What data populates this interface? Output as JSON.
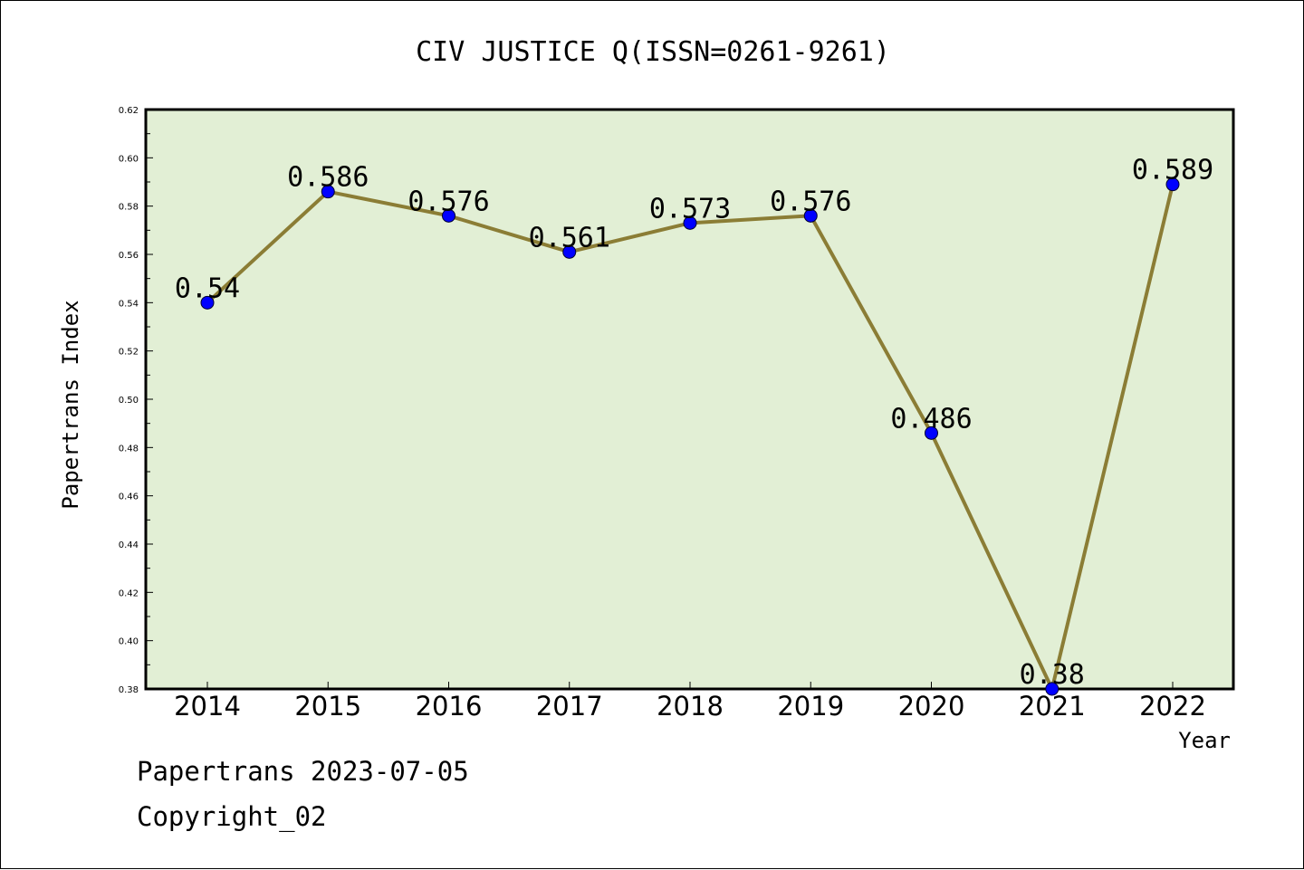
{
  "footer": {
    "line1": "Papertrans 2023-07-05",
    "line2": "Copyright_02"
  },
  "chart_data": {
    "type": "line",
    "title": "CIV JUSTICE Q(ISSN=0261-9261)",
    "xlabel": "Year",
    "ylabel": "Papertrans Index",
    "categories": [
      "2014",
      "2015",
      "2016",
      "2017",
      "2018",
      "2019",
      "2020",
      "2021",
      "2022"
    ],
    "values": [
      0.54,
      0.586,
      0.576,
      0.561,
      0.573,
      0.576,
      0.486,
      0.38,
      0.589
    ],
    "data_labels": [
      "0.54",
      "0.586",
      "0.576",
      "0.561",
      "0.573",
      "0.576",
      "0.486",
      "0.38",
      "0.589"
    ],
    "ylim": [
      0.38,
      0.62
    ],
    "yticks": [
      "0.38",
      "0.40",
      "0.42",
      "0.44",
      "0.46",
      "0.48",
      "0.50",
      "0.52",
      "0.54",
      "0.56",
      "0.58",
      "0.60",
      "0.62"
    ],
    "grid": false,
    "colors": {
      "plot_background": "#e2efd5",
      "line": "#8b7d35",
      "marker": "#0000ff"
    }
  }
}
